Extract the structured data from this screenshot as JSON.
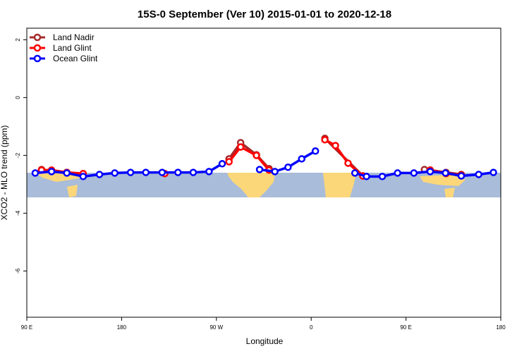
{
  "chart_data": {
    "type": "line",
    "title": "15S-0 September (Ver 10)   2015-01-01 to 2020-12-18",
    "xlabel": "Longitude",
    "ylabel": "XCO2 - MLO trend (ppm)",
    "xlim": [
      90,
      540
    ],
    "ylim": [
      -7.6,
      2.4
    ],
    "xticks": [
      {
        "value": 90,
        "label": "90 E"
      },
      {
        "value": 180,
        "label": "180"
      },
      {
        "value": 270,
        "label": "90 W"
      },
      {
        "value": 360,
        "label": "0"
      },
      {
        "value": 450,
        "label": "90 E"
      },
      {
        "value": 540,
        "label": "180"
      }
    ],
    "yticks": [
      2,
      0,
      -2,
      -4,
      -6
    ],
    "legend": "top-left",
    "series": [
      {
        "name": "Land Nadir",
        "color": "#a52a2a",
        "x": [
          104,
          113.5,
          128,
          143.5,
          200,
          282,
          293,
          308,
          320,
          350,
          373,
          409,
          460,
          467.5,
          473,
          488,
          502.5
        ],
        "values": [
          -2.49,
          -2.54,
          -2.59,
          -2.66,
          null,
          -2.12,
          -1.56,
          -1.98,
          -2.46,
          null,
          -1.41,
          -2.71,
          null,
          -2.49,
          -2.51,
          -2.59,
          -2.66
        ]
      },
      {
        "name": "Land Glint",
        "color": "#ff0000",
        "x": [
          104,
          113.5,
          128,
          143.5,
          200,
          221,
          250,
          282,
          293,
          308,
          320,
          350,
          373,
          383,
          395,
          409,
          460,
          473,
          488,
          502.5
        ],
        "values": [
          -2.51,
          -2.51,
          -2.59,
          -2.63,
          null,
          -2.63,
          null,
          -2.22,
          -1.71,
          -2.0,
          -2.51,
          null,
          -1.46,
          -1.66,
          -2.27,
          -2.71,
          null,
          -2.51,
          -2.63,
          -2.68
        ]
      },
      {
        "name": "Ocean Glint",
        "color": "#0000ff",
        "x": [
          98,
          113.5,
          128,
          143.5,
          159,
          173.5,
          188.5,
          203,
          218.5,
          233.5,
          248,
          263,
          275.5,
          292.5,
          311,
          325.5,
          338,
          351,
          364,
          380,
          401.5,
          412.5,
          427.5,
          442,
          457.5,
          473,
          487.5,
          502.5,
          519,
          533
        ],
        "values": [
          -2.61,
          -2.56,
          -2.61,
          -2.73,
          -2.66,
          -2.61,
          -2.59,
          -2.59,
          -2.59,
          -2.59,
          -2.59,
          -2.56,
          -2.29,
          null,
          -2.49,
          -2.56,
          -2.41,
          -2.12,
          -1.85,
          null,
          -2.61,
          -2.73,
          -2.73,
          -2.61,
          -2.61,
          -2.56,
          -2.61,
          -2.71,
          -2.66,
          -2.59
        ]
      }
    ]
  }
}
